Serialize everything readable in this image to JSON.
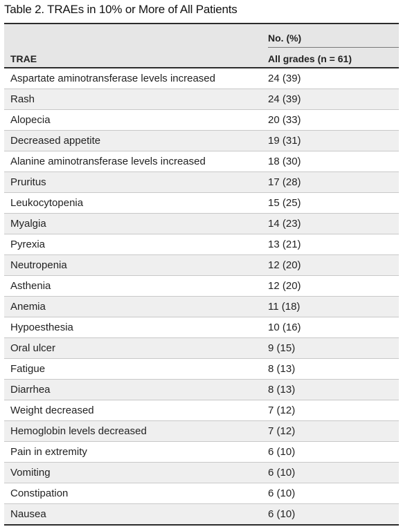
{
  "title": "Table 2. TRAEs in 10% or More of All Patients",
  "header": {
    "col1": "TRAE",
    "group": "No. (%)",
    "col2": "All grades (n = 61)"
  },
  "rows": [
    {
      "trae": "Aspartate aminotransferase levels increased",
      "value": "24 (39)"
    },
    {
      "trae": "Rash",
      "value": "24 (39)"
    },
    {
      "trae": "Alopecia",
      "value": "20 (33)"
    },
    {
      "trae": "Decreased appetite",
      "value": "19 (31)"
    },
    {
      "trae": "Alanine aminotransferase levels increased",
      "value": "18 (30)"
    },
    {
      "trae": "Pruritus",
      "value": "17 (28)"
    },
    {
      "trae": "Leukocytopenia",
      "value": "15 (25)"
    },
    {
      "trae": "Myalgia",
      "value": "14 (23)"
    },
    {
      "trae": "Pyrexia",
      "value": "13 (21)"
    },
    {
      "trae": "Neutropenia",
      "value": "12 (20)"
    },
    {
      "trae": "Asthenia",
      "value": "12 (20)"
    },
    {
      "trae": "Anemia",
      "value": "11 (18)"
    },
    {
      "trae": "Hypoesthesia",
      "value": "10 (16)"
    },
    {
      "trae": "Oral ulcer",
      "value": "9 (15)"
    },
    {
      "trae": "Fatigue",
      "value": "8 (13)"
    },
    {
      "trae": "Diarrhea",
      "value": "8 (13)"
    },
    {
      "trae": "Weight decreased",
      "value": "7 (12)"
    },
    {
      "trae": "Hemoglobin levels decreased",
      "value": "7 (12)"
    },
    {
      "trae": "Pain in extremity",
      "value": "6 (10)"
    },
    {
      "trae": "Vomiting",
      "value": "6 (10)"
    },
    {
      "trae": "Constipation",
      "value": "6 (10)"
    },
    {
      "trae": "Nausea",
      "value": "6 (10)"
    }
  ]
}
